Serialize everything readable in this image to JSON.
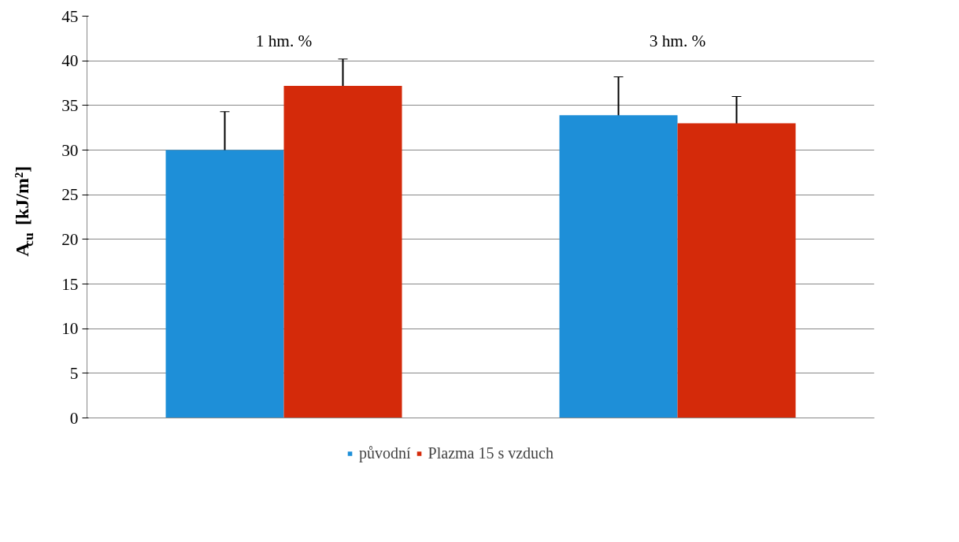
{
  "chart_data": {
    "type": "bar",
    "ylabel": "A$_{cu}$ [kJ/m²]",
    "categories": [
      "1 hm. %",
      "3 hm. %"
    ],
    "series": [
      {
        "name": "původní",
        "color": "#1e8fd8",
        "values": [
          30.0,
          33.9
        ],
        "errors": [
          4.3,
          4.3
        ]
      },
      {
        "name": "Plazma 15 s vzduch",
        "color": "#d42a0a",
        "values": [
          37.2,
          33.0
        ],
        "errors": [
          3.0,
          3.0
        ]
      }
    ],
    "ylim": [
      0,
      45
    ],
    "yticks": [
      0,
      5,
      10,
      15,
      20,
      25,
      30,
      35,
      40,
      45
    ],
    "grid": "y",
    "legend": "bottom"
  }
}
